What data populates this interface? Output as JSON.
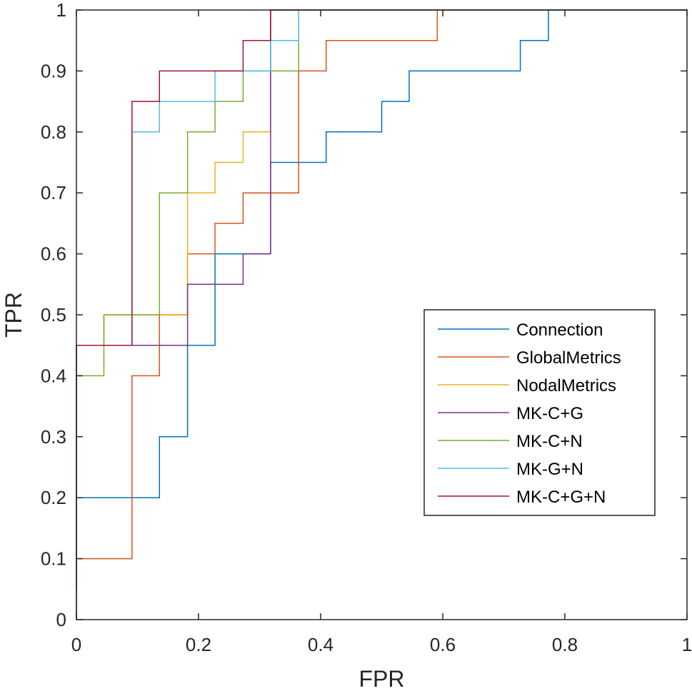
{
  "chart_data": {
    "type": "line",
    "step": true,
    "title": "",
    "xlabel": "FPR",
    "ylabel": "TPR",
    "xlim": [
      0,
      1
    ],
    "ylim": [
      0,
      1
    ],
    "xticks": [
      0,
      0.2,
      0.4,
      0.6,
      0.8,
      1
    ],
    "yticks": [
      0,
      0.1,
      0.2,
      0.3,
      0.4,
      0.5,
      0.6,
      0.7,
      0.8,
      0.9,
      1
    ],
    "xtick_labels": [
      "0",
      "0.2",
      "0.4",
      "0.6",
      "0.8",
      "1"
    ],
    "ytick_labels": [
      "0",
      "0.1",
      "0.2",
      "0.3",
      "0.4",
      "0.5",
      "0.6",
      "0.7",
      "0.8",
      "0.9",
      "1"
    ],
    "grid": false,
    "legend_position": "right-center",
    "series": [
      {
        "name": "Connection",
        "color": "#0072BD",
        "x": [
          0,
          0,
          0.136,
          0.136,
          0.182,
          0.182,
          0.227,
          0.227,
          0.318,
          0.318,
          0.409,
          0.409,
          0.5,
          0.5,
          0.545,
          0.545,
          0.727,
          0.727,
          0.773,
          0.773,
          1
        ],
        "y": [
          0,
          0.2,
          0.2,
          0.3,
          0.3,
          0.45,
          0.45,
          0.6,
          0.6,
          0.75,
          0.75,
          0.8,
          0.8,
          0.85,
          0.85,
          0.9,
          0.9,
          0.95,
          0.95,
          1,
          1
        ]
      },
      {
        "name": "GlobalMetrics",
        "color": "#D95319",
        "x": [
          0,
          0,
          0.091,
          0.091,
          0.136,
          0.136,
          0.182,
          0.182,
          0.227,
          0.227,
          0.273,
          0.273,
          0.364,
          0.364,
          0.409,
          0.409,
          0.591,
          0.591,
          1
        ],
        "y": [
          0,
          0.1,
          0.1,
          0.4,
          0.4,
          0.5,
          0.5,
          0.6,
          0.6,
          0.65,
          0.65,
          0.7,
          0.7,
          0.9,
          0.9,
          0.95,
          0.95,
          1,
          1
        ]
      },
      {
        "name": "NodalMetrics",
        "color": "#EDB120",
        "x": [
          0,
          0,
          0.045,
          0.045,
          0.182,
          0.182,
          0.227,
          0.227,
          0.273,
          0.273,
          0.318,
          0.318,
          1
        ],
        "y": [
          0,
          0.45,
          0.45,
          0.5,
          0.5,
          0.7,
          0.7,
          0.75,
          0.75,
          0.8,
          0.8,
          1,
          1
        ]
      },
      {
        "name": "MK-C+G",
        "color": "#7E2F8E",
        "x": [
          0,
          0,
          0.182,
          0.182,
          0.273,
          0.273,
          0.318,
          0.318,
          1
        ],
        "y": [
          0,
          0.45,
          0.45,
          0.55,
          0.55,
          0.6,
          0.6,
          1,
          1
        ]
      },
      {
        "name": "MK-C+N",
        "color": "#77AC30",
        "x": [
          0,
          0,
          0.045,
          0.045,
          0.136,
          0.136,
          0.182,
          0.182,
          0.227,
          0.227,
          0.273,
          0.273,
          0.364,
          0.364,
          1
        ],
        "y": [
          0,
          0.4,
          0.4,
          0.5,
          0.5,
          0.7,
          0.7,
          0.8,
          0.8,
          0.85,
          0.85,
          0.9,
          0.9,
          1,
          1
        ]
      },
      {
        "name": "MK-G+N",
        "color": "#4DBEEE",
        "x": [
          0,
          0,
          0.091,
          0.091,
          0.136,
          0.136,
          0.227,
          0.227,
          0.318,
          0.318,
          0.364,
          0.364,
          1
        ],
        "y": [
          0,
          0.45,
          0.45,
          0.8,
          0.8,
          0.85,
          0.85,
          0.9,
          0.9,
          0.95,
          0.95,
          1,
          1
        ]
      },
      {
        "name": "MK-C+G+N",
        "color": "#A2142F",
        "x": [
          0,
          0,
          0.091,
          0.091,
          0.136,
          0.136,
          0.273,
          0.273,
          0.318,
          0.318,
          1
        ],
        "y": [
          0.05,
          0.45,
          0.45,
          0.85,
          0.85,
          0.9,
          0.9,
          0.95,
          0.95,
          1,
          1
        ]
      }
    ]
  }
}
